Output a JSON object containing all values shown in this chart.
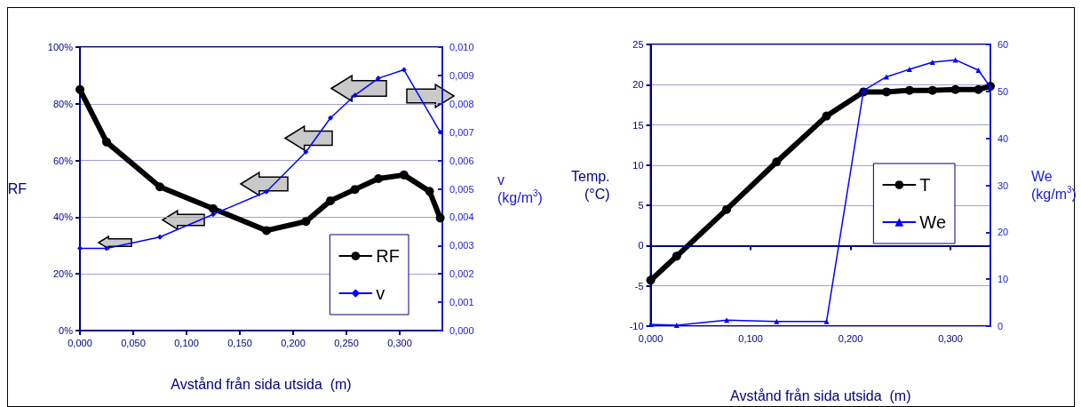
{
  "chart_data": [
    {
      "type": "line",
      "xlabel": "Avstånd från sida utsida  (m)",
      "ylabel": "RF",
      "y2label": "v\n(kg/m$^{3}$)",
      "xlim": [
        0,
        0.34
      ],
      "xticks": [
        {
          "value": 0,
          "label": "0,000"
        },
        {
          "value": 0.05,
          "label": "0,050"
        },
        {
          "value": 0.1,
          "label": "0,100"
        },
        {
          "value": 0.15,
          "label": "0,150"
        },
        {
          "value": 0.2,
          "label": "0,200"
        },
        {
          "value": 0.25,
          "label": "0,250"
        },
        {
          "value": 0.3,
          "label": "0,300"
        }
      ],
      "ylim": [
        0,
        100
      ],
      "yticks": [
        {
          "value": 0,
          "label": "0%"
        },
        {
          "value": 20,
          "label": "20%"
        },
        {
          "value": 40,
          "label": "40%"
        },
        {
          "value": 60,
          "label": "60%"
        },
        {
          "value": 80,
          "label": "80%"
        },
        {
          "value": 100,
          "label": "100%"
        }
      ],
      "y2lim": [
        0,
        0.01
      ],
      "y2ticks": [
        {
          "value": 0,
          "label": "0,000"
        },
        {
          "value": 0.001,
          "label": "0,001"
        },
        {
          "value": 0.002,
          "label": "0,002"
        },
        {
          "value": 0.003,
          "label": "0,003"
        },
        {
          "value": 0.004,
          "label": "0,004"
        },
        {
          "value": 0.005,
          "label": "0,005"
        },
        {
          "value": 0.006,
          "label": "0,006"
        },
        {
          "value": 0.007,
          "label": "0,007"
        },
        {
          "value": 0.008,
          "label": "0,008"
        },
        {
          "value": 0.009,
          "label": "0,009"
        },
        {
          "value": 0.01,
          "label": "0,010"
        }
      ],
      "grid": "y",
      "legend": "bottom right",
      "series": [
        {
          "name": "RF",
          "color": "#000000",
          "marker": "circle",
          "x": [
            0,
            0.025,
            0.075,
            0.125,
            0.175,
            0.212,
            0.235,
            0.258,
            0.28,
            0.304,
            0.328,
            0.338
          ],
          "values": [
            85,
            66.5,
            50.7,
            43,
            35.3,
            38.5,
            45.8,
            49.8,
            53.6,
            54.9,
            49.1,
            39.7
          ]
        },
        {
          "name": "v",
          "color": "#0000ff",
          "marker": "diamond",
          "axis": "y2",
          "x": [
            0,
            0.025,
            0.075,
            0.125,
            0.175,
            0.212,
            0.235,
            0.258,
            0.28,
            0.304,
            0.338
          ],
          "values": [
            0.0029,
            0.0029,
            0.0033,
            0.0041,
            0.0049,
            0.0063,
            0.0075,
            0.0083,
            0.0089,
            0.0092,
            0.007
          ]
        }
      ]
    },
    {
      "type": "line",
      "xlabel": "Avstånd från sida utsida  (m)",
      "ylabel": "Temp.\n(°C)",
      "y2label": "We\n(kg/m$^{3}$)",
      "xlim": [
        0,
        0.34
      ],
      "xticks": [
        {
          "value": 0,
          "label": "0,000"
        },
        {
          "value": 0.1,
          "label": "0,100"
        },
        {
          "value": 0.2,
          "label": "0,200"
        },
        {
          "value": 0.3,
          "label": "0,300"
        }
      ],
      "ref_lines": [
        {
          "axis": "y",
          "value": 0,
          "color": "#000080"
        }
      ],
      "ylim": [
        -10,
        25
      ],
      "yticks": [
        -10,
        -5,
        0,
        5,
        10,
        15,
        20,
        25
      ],
      "y2lim": [
        0,
        60
      ],
      "y2ticks": [
        0,
        10,
        20,
        30,
        40,
        50,
        60
      ],
      "grid": "y",
      "legend": "right",
      "series": [
        {
          "name": "T",
          "color": "#000000",
          "marker": "circle",
          "x": [
            0,
            0.026,
            0.076,
            0.126,
            0.176,
            0.213,
            0.236,
            0.259,
            0.282,
            0.305,
            0.328,
            0.34
          ],
          "values": [
            -4.3,
            -1.3,
            4.5,
            10.4,
            16.1,
            19.1,
            19.1,
            19.3,
            19.3,
            19.4,
            19.4,
            19.8
          ]
        },
        {
          "name": "We",
          "color": "#0000ff",
          "marker": "triangle",
          "axis": "y2",
          "x": [
            0,
            0.026,
            0.076,
            0.126,
            0.176,
            0.213,
            0.236,
            0.259,
            0.282,
            0.305,
            0.328,
            0.34
          ],
          "values": [
            0.4,
            0.2,
            1.3,
            1,
            1,
            50.2,
            53.1,
            54.7,
            56.2,
            56.7,
            54.5,
            50.9
          ]
        }
      ]
    }
  ]
}
